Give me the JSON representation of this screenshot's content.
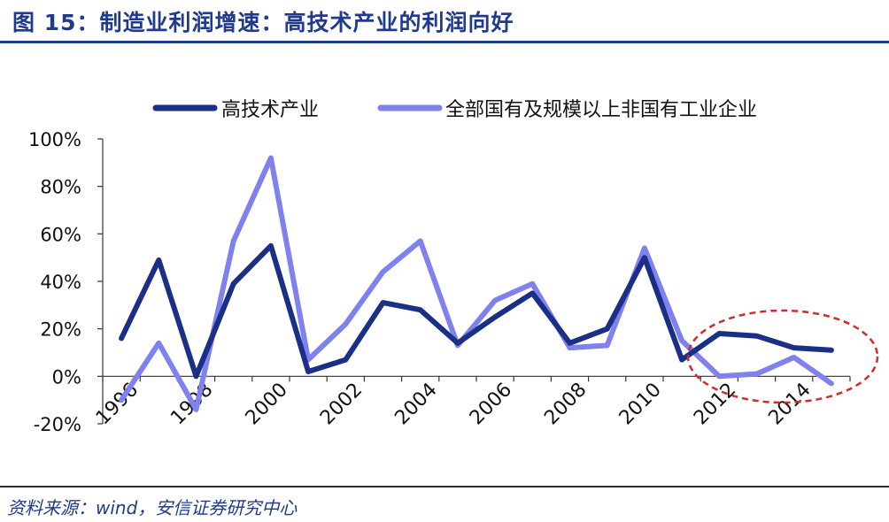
{
  "figure": {
    "title": "图 15：制造业利润增速：高技术产业的利润向好",
    "source": "资料来源：wind，安信证券研究中心"
  },
  "colors": {
    "title": "#1f3a8f",
    "series_dark": "#1b2f86",
    "series_light": "#7f82ee",
    "annotation": "#d42a2a"
  },
  "chart_data": {
    "type": "line",
    "x": [
      1996,
      1997,
      1998,
      1999,
      2000,
      2001,
      2002,
      2003,
      2004,
      2005,
      2006,
      2007,
      2008,
      2009,
      2010,
      2011,
      2012,
      2013,
      2014,
      2015
    ],
    "x_tick_labels": [
      "1996",
      "1998",
      "2000",
      "2002",
      "2004",
      "2006",
      "2008",
      "2010",
      "2012",
      "2014"
    ],
    "y_tick_labels": [
      "100%",
      "80%",
      "60%",
      "40%",
      "20%",
      "0%",
      "-20%"
    ],
    "y_ticks": [
      100,
      80,
      60,
      40,
      20,
      0,
      -20
    ],
    "ylim": [
      -20,
      100
    ],
    "y_unit": "%",
    "legend_position": "top",
    "grid": false,
    "series": [
      {
        "name": "高技术产业",
        "color": "#1b2f86",
        "values": [
          16,
          49,
          0,
          39,
          55,
          2,
          7,
          31,
          28,
          14,
          25,
          35,
          14,
          20,
          50,
          7,
          18,
          17,
          12,
          11
        ]
      },
      {
        "name": "全部国有及规模以上非国有工业企业",
        "color": "#7f82ee",
        "values": [
          -10,
          14,
          -14,
          57,
          92,
          7,
          22,
          44,
          57,
          13,
          32,
          39,
          12,
          13,
          54,
          15,
          0,
          1,
          8,
          -3
        ]
      }
    ],
    "annotation": {
      "shape": "dashed-ellipse",
      "highlights_years": [
        2011,
        2015
      ]
    }
  }
}
